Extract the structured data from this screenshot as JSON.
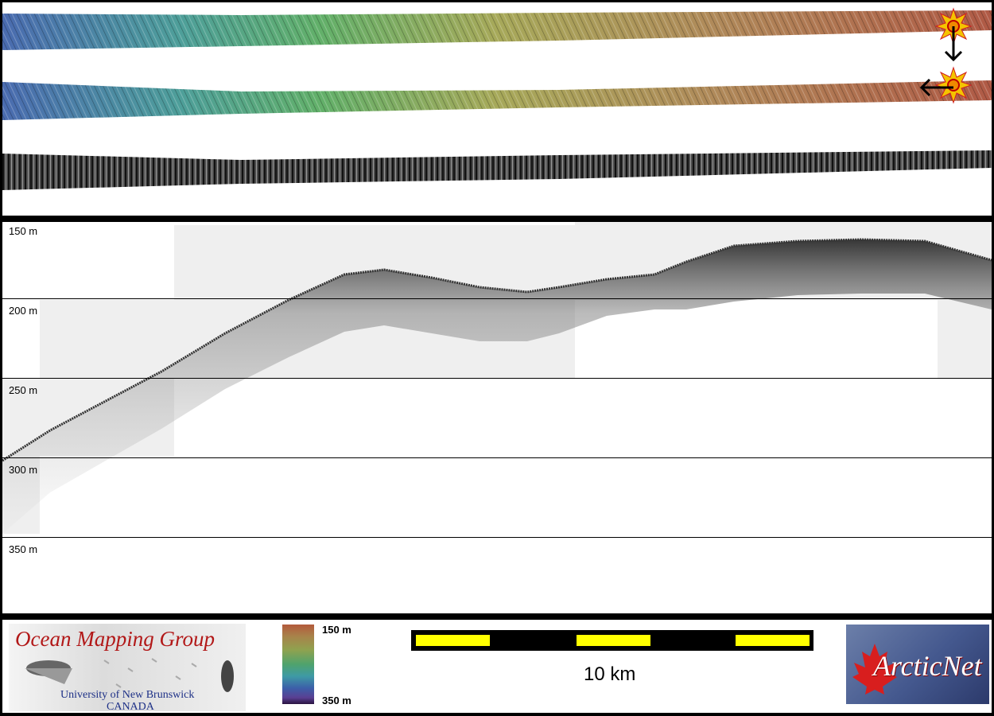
{
  "profile": {
    "depth_labels": [
      "150 m",
      "200 m",
      "250 m",
      "300 m",
      "350 m"
    ]
  },
  "legend": {
    "colorbar_top": "150 m",
    "colorbar_bottom": "350 m",
    "scale_label": "10 km"
  },
  "logos": {
    "omg_title": "Ocean Mapping Group",
    "omg_university": "University of New Brunswick",
    "omg_country": "CANADA",
    "arcticnet_text": "ArcticNet"
  },
  "colors": {
    "yellow": "#ffff00",
    "omg_red": "#b21818",
    "omg_blue": "#1c2f86"
  }
}
